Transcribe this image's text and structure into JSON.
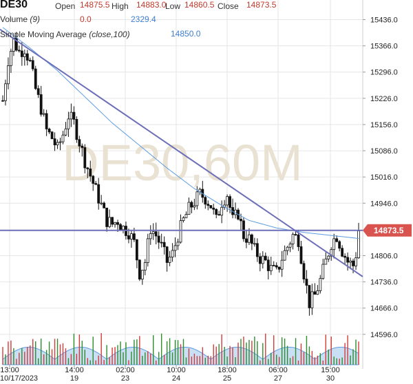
{
  "symbol": "DE30",
  "ohlc": {
    "open_label": "Open",
    "open": "14875.5",
    "high_label": "High",
    "high": "14883.0",
    "low_label": "Low",
    "low": "14860.5",
    "close_label": "Close",
    "close": "14873.5"
  },
  "volume_legend": {
    "label": "Volume",
    "param": "(9)",
    "value1": "0.0",
    "value2": "2329.4"
  },
  "sma_legend": {
    "label": "Simple Moving Average",
    "param": "(close,100)",
    "value": "14850.0"
  },
  "watermark": "DE30,60M",
  "last_price_tag": "14873.5",
  "colors": {
    "candle": "#111111",
    "sma": "#5b9be0",
    "trendline": "#6c6fb8",
    "hline": "#6c6fb8",
    "volume_bar": "#2e8b2e",
    "volume_bar_down": "#d23b3b",
    "volume_area": "#9cc4ea",
    "grid": "#e6e6e6",
    "tag_bg": "#d9534f",
    "watermark": "#e9e2d2"
  },
  "chart_data": {
    "type": "candlestick",
    "title": "DE30",
    "y_ticks": [
      15436.0,
      15366.0,
      15296.0,
      15226.0,
      15156.0,
      15086.0,
      15016.0,
      14946.0,
      14806.0,
      14736.0,
      14666.0,
      14596.0
    ],
    "ylim": [
      14570,
      15470
    ],
    "x_tick_labels": [
      {
        "time": "13:00",
        "date": "10/17/2023"
      },
      {
        "time": "14:00",
        "date": "19"
      },
      {
        "time": "02:00",
        "date": "23"
      },
      {
        "time": "10:00",
        "date": "24"
      },
      {
        "time": "18:00",
        "date": "25"
      },
      {
        "time": "06:00",
        "date": "27"
      },
      {
        "time": "15:00",
        "date": "30"
      }
    ],
    "horizontal_level": 14873.5,
    "last_price": 14873.5,
    "trendline": {
      "from": {
        "bar": 0,
        "price": 15410
      },
      "to": {
        "bar": 130,
        "price": 14750
      }
    },
    "sma_100_points": [
      [
        0,
        15415
      ],
      [
        10,
        15360
      ],
      [
        20,
        15300
      ],
      [
        30,
        15230
      ],
      [
        40,
        15160
      ],
      [
        50,
        15100
      ],
      [
        60,
        15040
      ],
      [
        70,
        14985
      ],
      [
        80,
        14940
      ],
      [
        90,
        14900
      ],
      [
        100,
        14880
      ],
      [
        110,
        14868
      ],
      [
        120,
        14860
      ],
      [
        130,
        14852
      ]
    ],
    "close_path": [
      [
        0,
        15220
      ],
      [
        2,
        15330
      ],
      [
        4,
        15380
      ],
      [
        6,
        15350
      ],
      [
        8,
        15360
      ],
      [
        10,
        15320
      ],
      [
        12,
        15250
      ],
      [
        14,
        15200
      ],
      [
        16,
        15140
      ],
      [
        18,
        15120
      ],
      [
        20,
        15090
      ],
      [
        22,
        15130
      ],
      [
        24,
        15180
      ],
      [
        26,
        15160
      ],
      [
        28,
        15110
      ],
      [
        30,
        15060
      ],
      [
        32,
        15020
      ],
      [
        34,
        14980
      ],
      [
        36,
        14940
      ],
      [
        38,
        14900
      ],
      [
        40,
        14890
      ],
      [
        42,
        14900
      ],
      [
        44,
        14880
      ],
      [
        46,
        14870
      ],
      [
        48,
        14840
      ],
      [
        50,
        14760
      ],
      [
        52,
        14790
      ],
      [
        54,
        14880
      ],
      [
        56,
        14860
      ],
      [
        58,
        14830
      ],
      [
        60,
        14790
      ],
      [
        62,
        14810
      ],
      [
        64,
        14860
      ],
      [
        66,
        14900
      ],
      [
        68,
        14930
      ],
      [
        70,
        14950
      ],
      [
        72,
        14970
      ],
      [
        74,
        14960
      ],
      [
        76,
        14940
      ],
      [
        78,
        14900
      ],
      [
        80,
        14950
      ],
      [
        82,
        14970
      ],
      [
        84,
        14900
      ],
      [
        86,
        14920
      ],
      [
        88,
        14860
      ],
      [
        90,
        14850
      ],
      [
        92,
        14820
      ],
      [
        94,
        14800
      ],
      [
        96,
        14790
      ],
      [
        98,
        14770
      ],
      [
        100,
        14760
      ],
      [
        102,
        14800
      ],
      [
        104,
        14830
      ],
      [
        106,
        14860
      ],
      [
        108,
        14850
      ],
      [
        110,
        14760
      ],
      [
        112,
        14680
      ],
      [
        114,
        14700
      ],
      [
        116,
        14740
      ],
      [
        118,
        14790
      ],
      [
        120,
        14840
      ],
      [
        122,
        14860
      ],
      [
        124,
        14820
      ],
      [
        126,
        14790
      ],
      [
        128,
        14780
      ],
      [
        129,
        14810
      ],
      [
        130,
        14873.5
      ]
    ]
  }
}
